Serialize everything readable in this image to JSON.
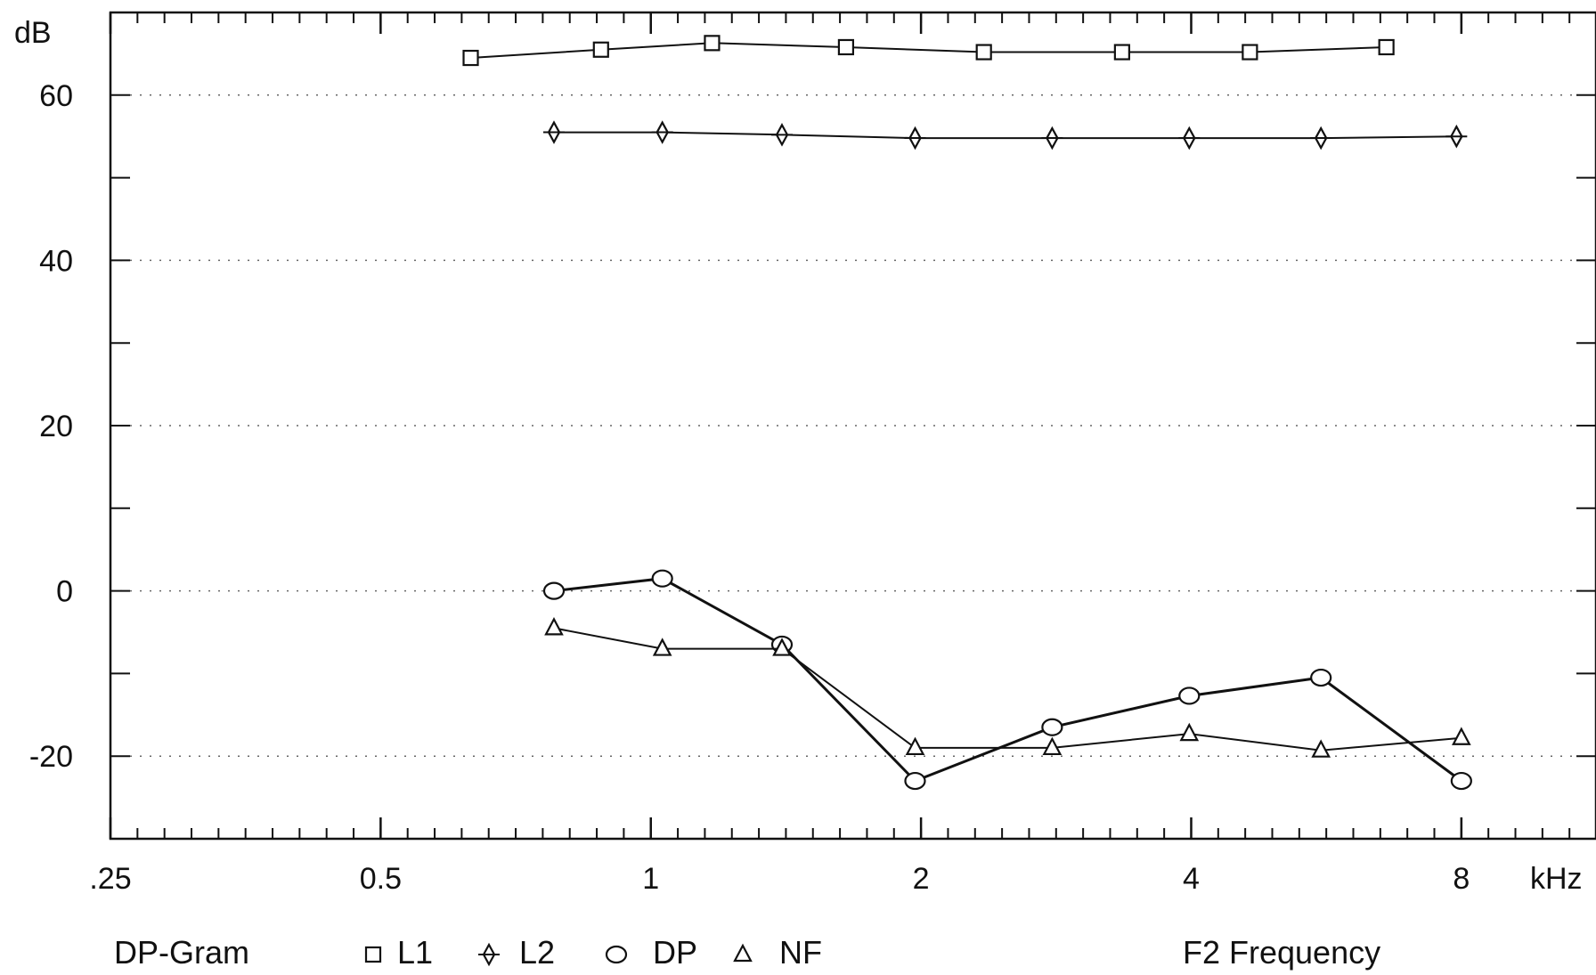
{
  "chart_data": {
    "type": "line",
    "title": "",
    "ylabel": "dB",
    "xlabel": "kHz",
    "x_scale": "log2",
    "xlim": [
      0.25,
      11.3
    ],
    "ylim": [
      -30,
      70
    ],
    "y_ticks": [
      -20,
      0,
      20,
      40,
      60
    ],
    "y_minor_step": 10,
    "x_ticks": [
      {
        "value": 0.25,
        "label": ".25"
      },
      {
        "value": 0.5,
        "label": "0.5"
      },
      {
        "value": 1,
        "label": "1"
      },
      {
        "value": 2,
        "label": "2"
      },
      {
        "value": 4,
        "label": "4"
      },
      {
        "value": 8,
        "label": "8"
      }
    ],
    "grid": true,
    "legend": {
      "name": "DP-Gram",
      "axis_caption": "F2 Frequency",
      "placement": "bottom"
    },
    "series": [
      {
        "name": "L1",
        "marker": "square",
        "x": [
          0.63,
          0.88,
          1.17,
          1.65,
          2.35,
          3.35,
          4.65,
          6.6
        ],
        "y": [
          64.5,
          65.5,
          66.3,
          65.8,
          65.2,
          65.2,
          65.2,
          65.8
        ]
      },
      {
        "name": "L2",
        "marker": "diamond",
        "x": [
          0.78,
          1.03,
          1.4,
          1.97,
          2.8,
          3.98,
          5.58,
          7.9
        ],
        "y": [
          55.5,
          55.5,
          55.2,
          54.8,
          54.8,
          54.8,
          54.8,
          55.0
        ]
      },
      {
        "name": "DP",
        "marker": "circle",
        "x": [
          0.78,
          1.03,
          1.4,
          1.97,
          2.8,
          3.98,
          5.58,
          8.0
        ],
        "y": [
          0.0,
          1.5,
          -6.5,
          -23.0,
          -16.5,
          -12.7,
          -10.5,
          -23.0
        ]
      },
      {
        "name": "NF",
        "marker": "triangle",
        "x": [
          0.78,
          1.03,
          1.4,
          1.97,
          2.8,
          3.98,
          5.58,
          8.0
        ],
        "y": [
          -4.5,
          -7.0,
          -7.0,
          -19.0,
          -19.0,
          -17.3,
          -19.3,
          -17.8
        ]
      }
    ]
  }
}
